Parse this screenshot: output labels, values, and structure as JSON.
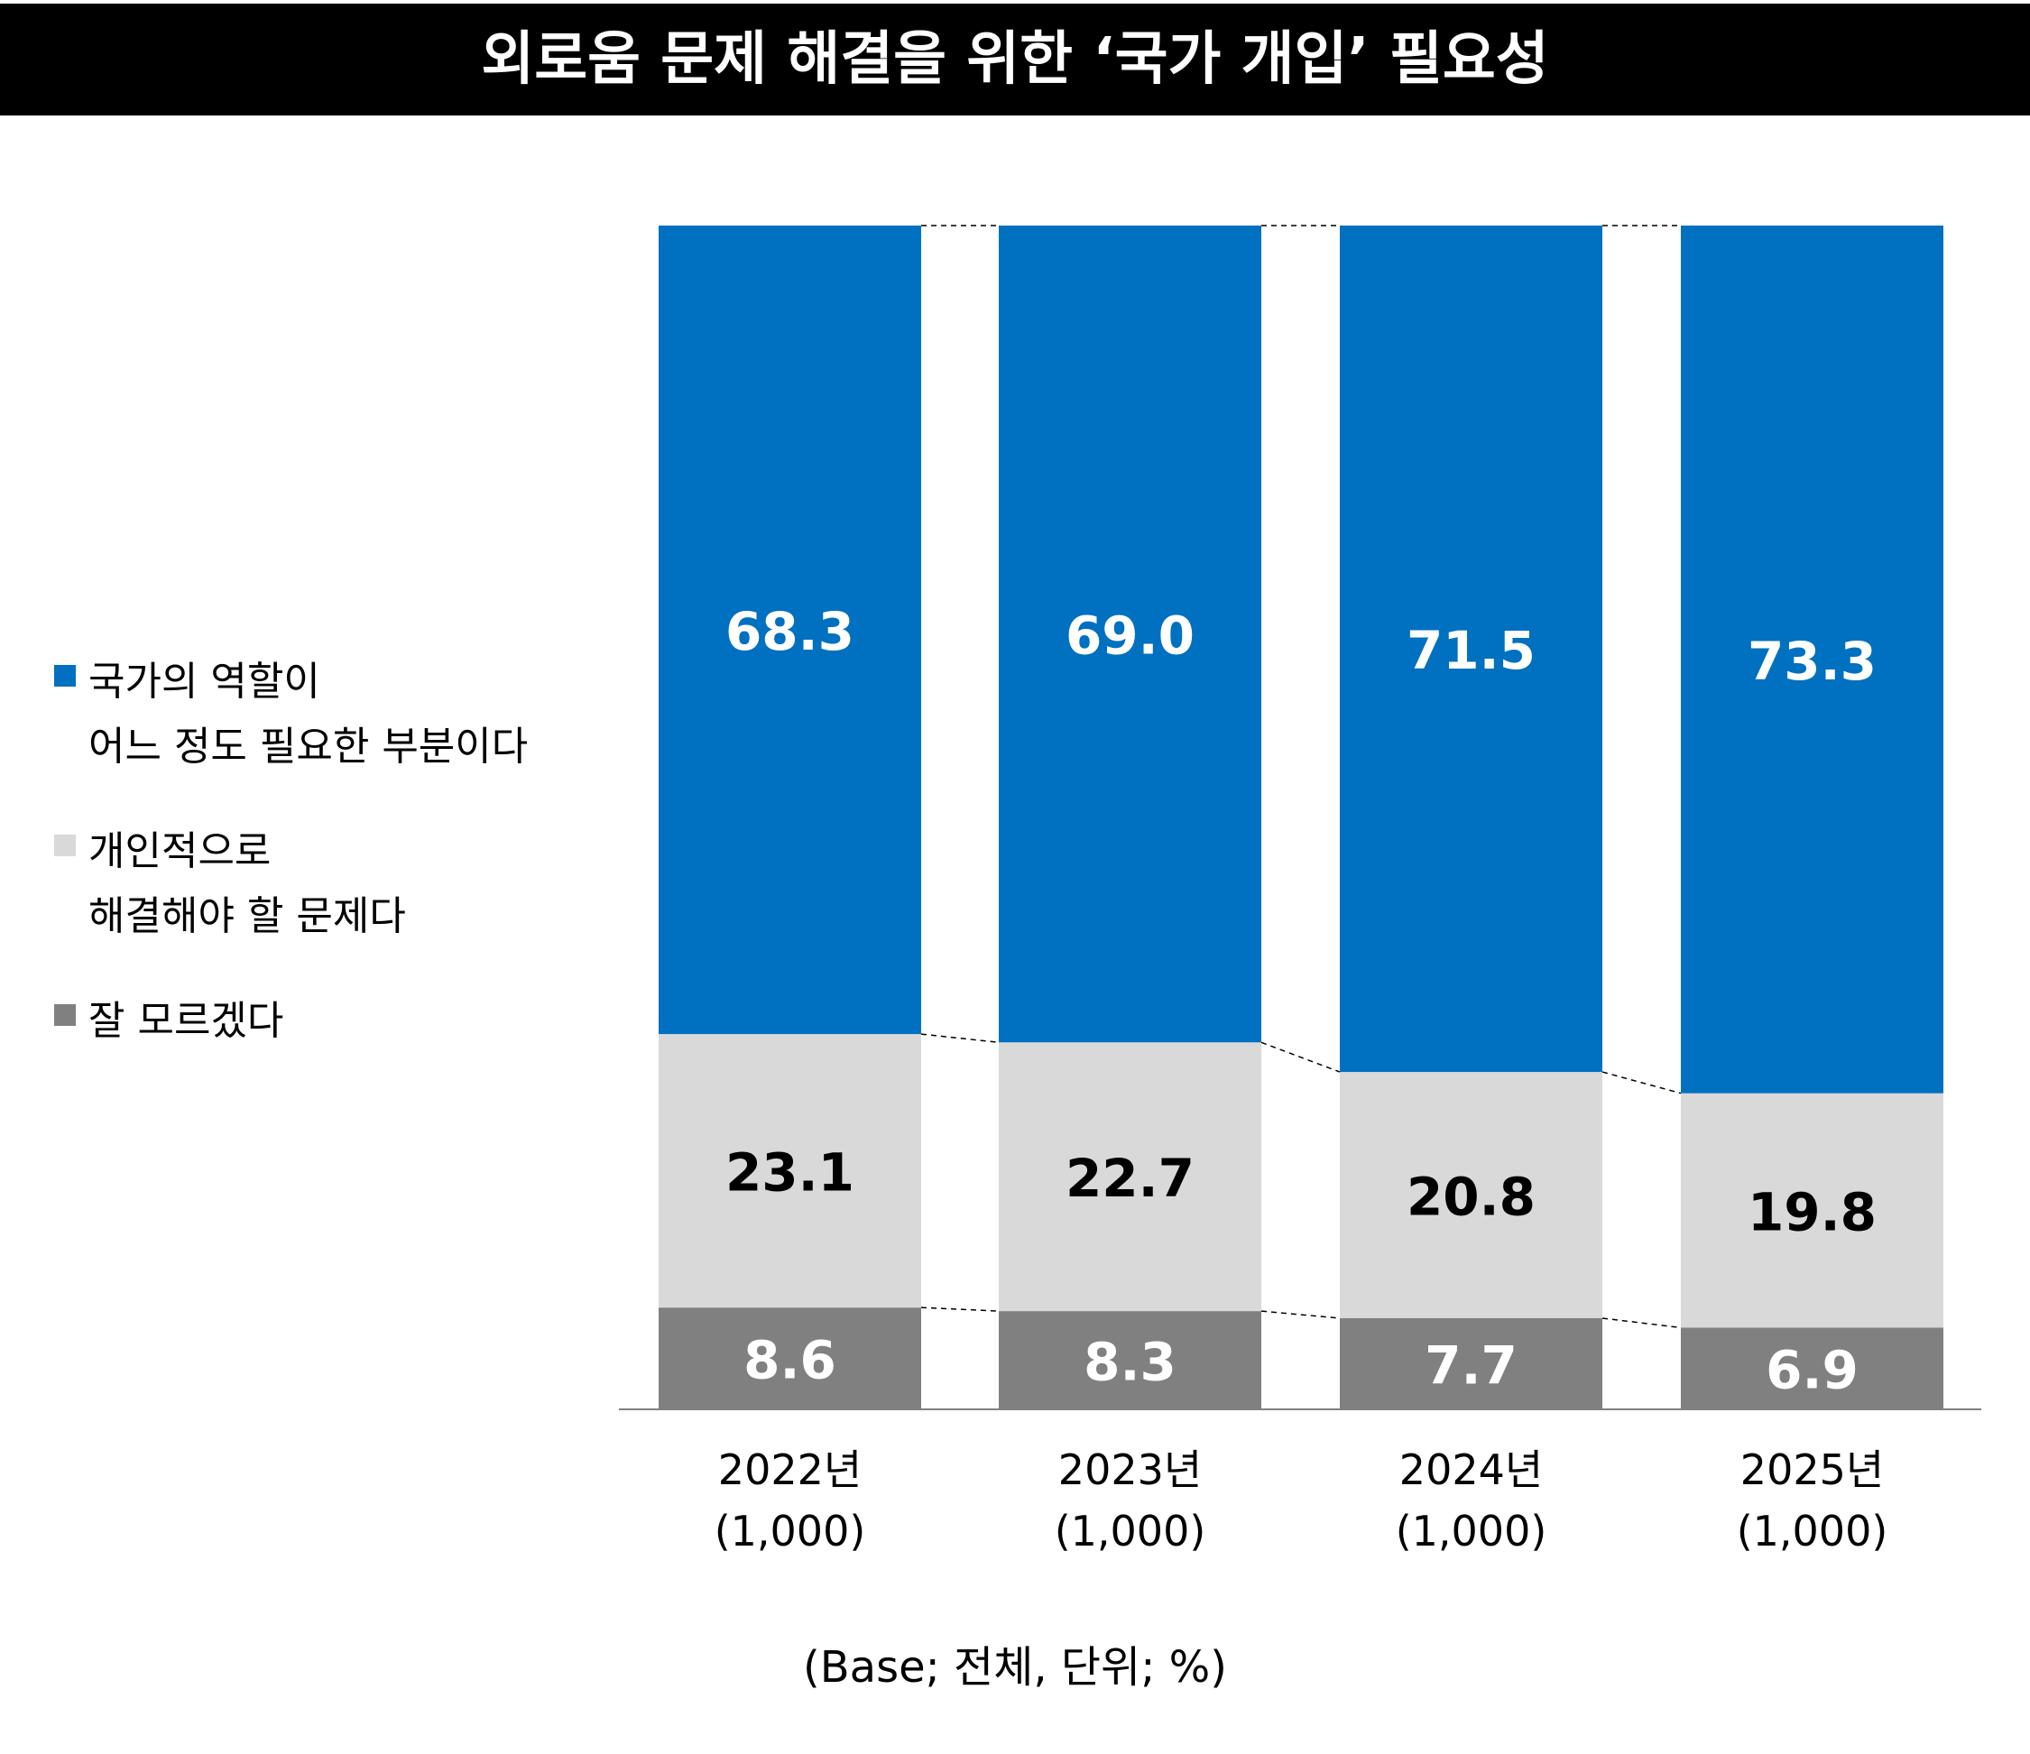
{
  "title": "외로움 문제 해결을 위한 ‘국가 개입’ 필요성",
  "note": "(Base; 전체, 단위; %)",
  "colors": {
    "title_bg": "#000000",
    "title_text": "#ffffff",
    "national": "#0070c0",
    "individual": "#d9d9d9",
    "unknown": "#808080"
  },
  "legend": [
    {
      "key": "national",
      "lines": [
        "국가의 역할이",
        "어느 정도 필요한 부분이다"
      ]
    },
    {
      "key": "individual",
      "lines": [
        "개인적으로",
        "해결해야 할 문제다"
      ]
    },
    {
      "key": "unknown",
      "lines": [
        "잘 모르겠다"
      ]
    }
  ],
  "chart_data": {
    "type": "bar",
    "stacked": true,
    "normalized_to": 100,
    "categories": [
      {
        "year": "2022년",
        "base": "(1,000)"
      },
      {
        "year": "2023년",
        "base": "(1,000)"
      },
      {
        "year": "2024년",
        "base": "(1,000)"
      },
      {
        "year": "2025년",
        "base": "(1,000)"
      }
    ],
    "series": [
      {
        "name": "잘 모르겠다",
        "key": "unknown",
        "values": [
          8.6,
          8.3,
          7.7,
          6.9
        ],
        "label_color": "#ffffff"
      },
      {
        "name": "개인적으로 해결해야 할 문제다",
        "key": "individual",
        "values": [
          23.1,
          22.7,
          20.8,
          19.8
        ],
        "label_color": "#000000"
      },
      {
        "name": "국가의 역할이 어느 정도 필요한 부분이다",
        "key": "national",
        "values": [
          68.3,
          69.0,
          71.5,
          73.3
        ],
        "label_color": "#ffffff"
      }
    ],
    "ylim": [
      0,
      100
    ],
    "grid": false,
    "legend_position": "left",
    "connector_lines": "dashed"
  }
}
